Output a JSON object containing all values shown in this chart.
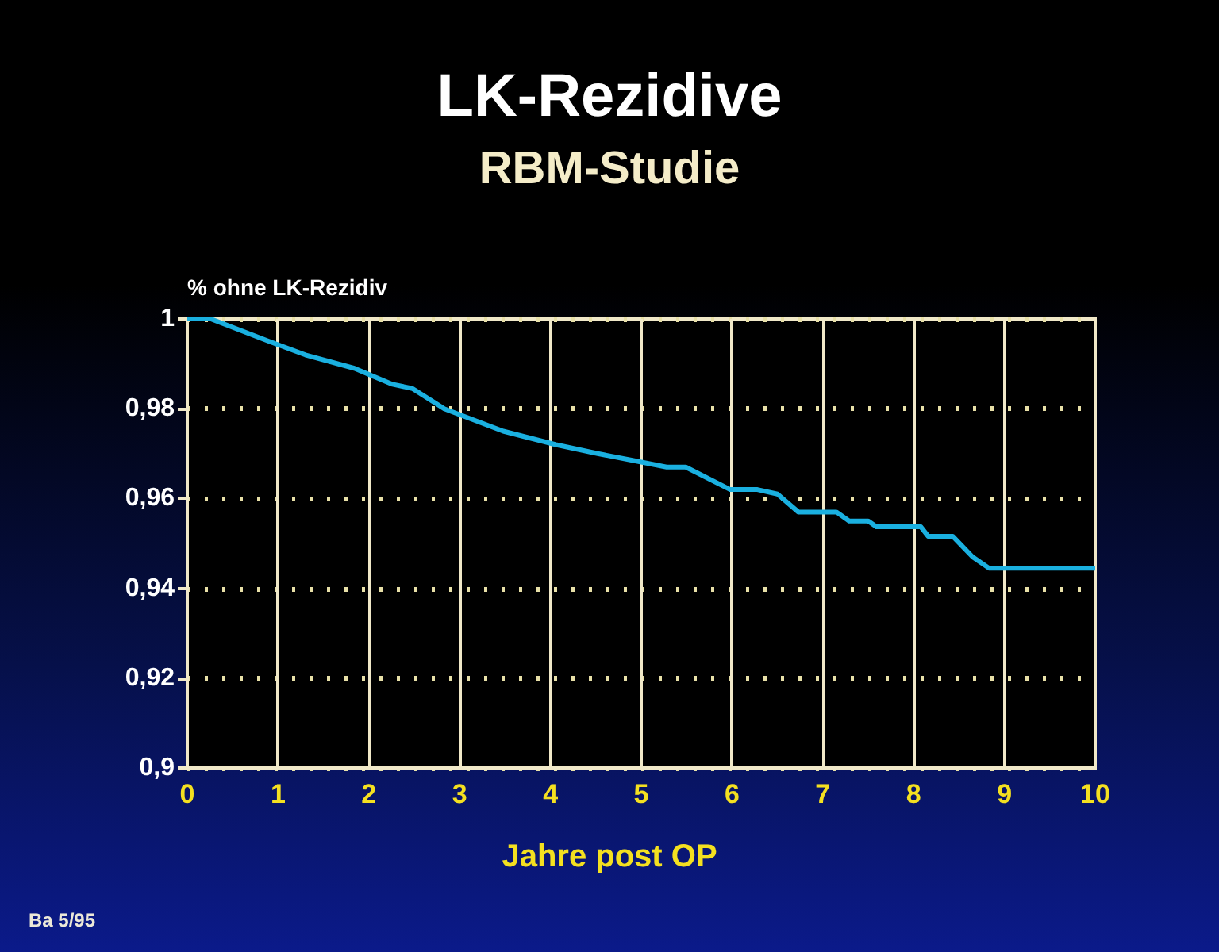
{
  "chart_data": {
    "type": "line",
    "title": "LK-Rezidive",
    "subtitle": "RBM-Studie",
    "xlabel": "Jahre post OP",
    "ylabel": "% ohne LK-Rezidiv",
    "annotations": [
      "Ba 5/95"
    ],
    "x": [
      0,
      0.26,
      0.9,
      1.3,
      1.84,
      2.25,
      2.48,
      2.83,
      3.48,
      4.06,
      4.52,
      4.88,
      5.28,
      5.49,
      5.98,
      6.28,
      6.5,
      6.73,
      7.15,
      7.29,
      7.5,
      7.59,
      8.08,
      8.16,
      8.43,
      8.65,
      8.83,
      10
    ],
    "series": [
      {
        "color": "#1ab0e0",
        "values": [
          1,
          1,
          0.995,
          0.992,
          0.989,
          0.9855,
          0.9845,
          0.98,
          0.975,
          0.972,
          0.97,
          0.9686,
          0.967,
          0.967,
          0.962,
          0.962,
          0.961,
          0.957,
          0.957,
          0.955,
          0.955,
          0.9537,
          0.9537,
          0.9516,
          0.9516,
          0.947,
          0.9445,
          0.9445
        ]
      }
    ],
    "xlim": [
      0,
      10
    ],
    "xticks": [
      0,
      1,
      2,
      3,
      4,
      5,
      6,
      7,
      8,
      9,
      10
    ],
    "ylim": [
      0.9,
      1
    ],
    "yticks": [
      {
        "value": 0.9,
        "label": "0,9"
      },
      {
        "value": 0.92,
        "label": "0,92"
      },
      {
        "value": 0.94,
        "label": "0,94"
      },
      {
        "value": 0.96,
        "label": "0,96"
      },
      {
        "value": 0.98,
        "label": "0,98"
      },
      1
    ],
    "grid": true,
    "marker": "none",
    "line_style": "solid"
  }
}
